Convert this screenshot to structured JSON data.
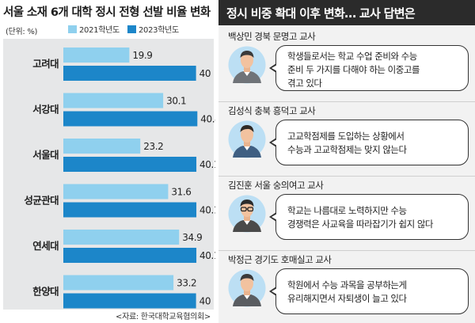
{
  "left": {
    "title": "서울 소재 6개 대학 정시 전형 선발 비율 변화",
    "unit": "(단위: %)",
    "source": "<자료: 한국대학교육협의회>"
  },
  "chart_data": {
    "type": "bar",
    "orientation": "horizontal",
    "title": "서울 소재 6개 대학 정시 전형 선발 비율 변화",
    "unit": "(단위: %)",
    "categories": [
      "고려대",
      "서강대",
      "서울대",
      "성균관대",
      "연세대",
      "한양대"
    ],
    "series": [
      {
        "name": "2021학년도",
        "values": [
          19.9,
          30.1,
          23.2,
          31.6,
          34.9,
          33.2
        ],
        "labels": [
          "19.9",
          "30.1",
          "23.2",
          "31.6",
          "34.9",
          "33.2"
        ],
        "color": "#8fd0ee"
      },
      {
        "name": "2023학년도",
        "values": [
          40,
          40.4,
          40.1,
          40.1,
          40.1,
          40
        ],
        "labels": [
          "40",
          "40.4",
          "40.1",
          "40.1",
          "40.1",
          "40"
        ],
        "color": "#1c86c9"
      }
    ],
    "xlim": [
      0,
      42
    ],
    "grid": false,
    "legend_position": "top",
    "source": "<자료: 한국대학교육협의회>"
  },
  "right": {
    "header": "정시 비중 확대 이후 변화… 교사 답변은",
    "teachers": [
      {
        "name": "백상민 경북 문명고 교사",
        "lines": [
          "학생들로서는 학교 수업 준비와 수능",
          "준비 두 가지를 다해야 하는 이중고를",
          "겪고 있다"
        ]
      },
      {
        "name": "김성식 충북 흥덕고 교사",
        "lines": [
          "고교학점제를 도입하는 상황에서",
          "수능과 고교학점제는 맞지 않는다"
        ]
      },
      {
        "name": "김진훈 서울 숭의여고 교사",
        "lines": [
          "학교는 나름대로 노력하지만 수능",
          "경쟁력은 사교육을 따라잡기가 쉽지 않다"
        ]
      },
      {
        "name": "박정근 경기도 호매실고 교사",
        "lines": [
          "학원에서 수능 과목을 공부하는게",
          "유리해지면서 자퇴생이 늘고 있다"
        ]
      }
    ]
  }
}
